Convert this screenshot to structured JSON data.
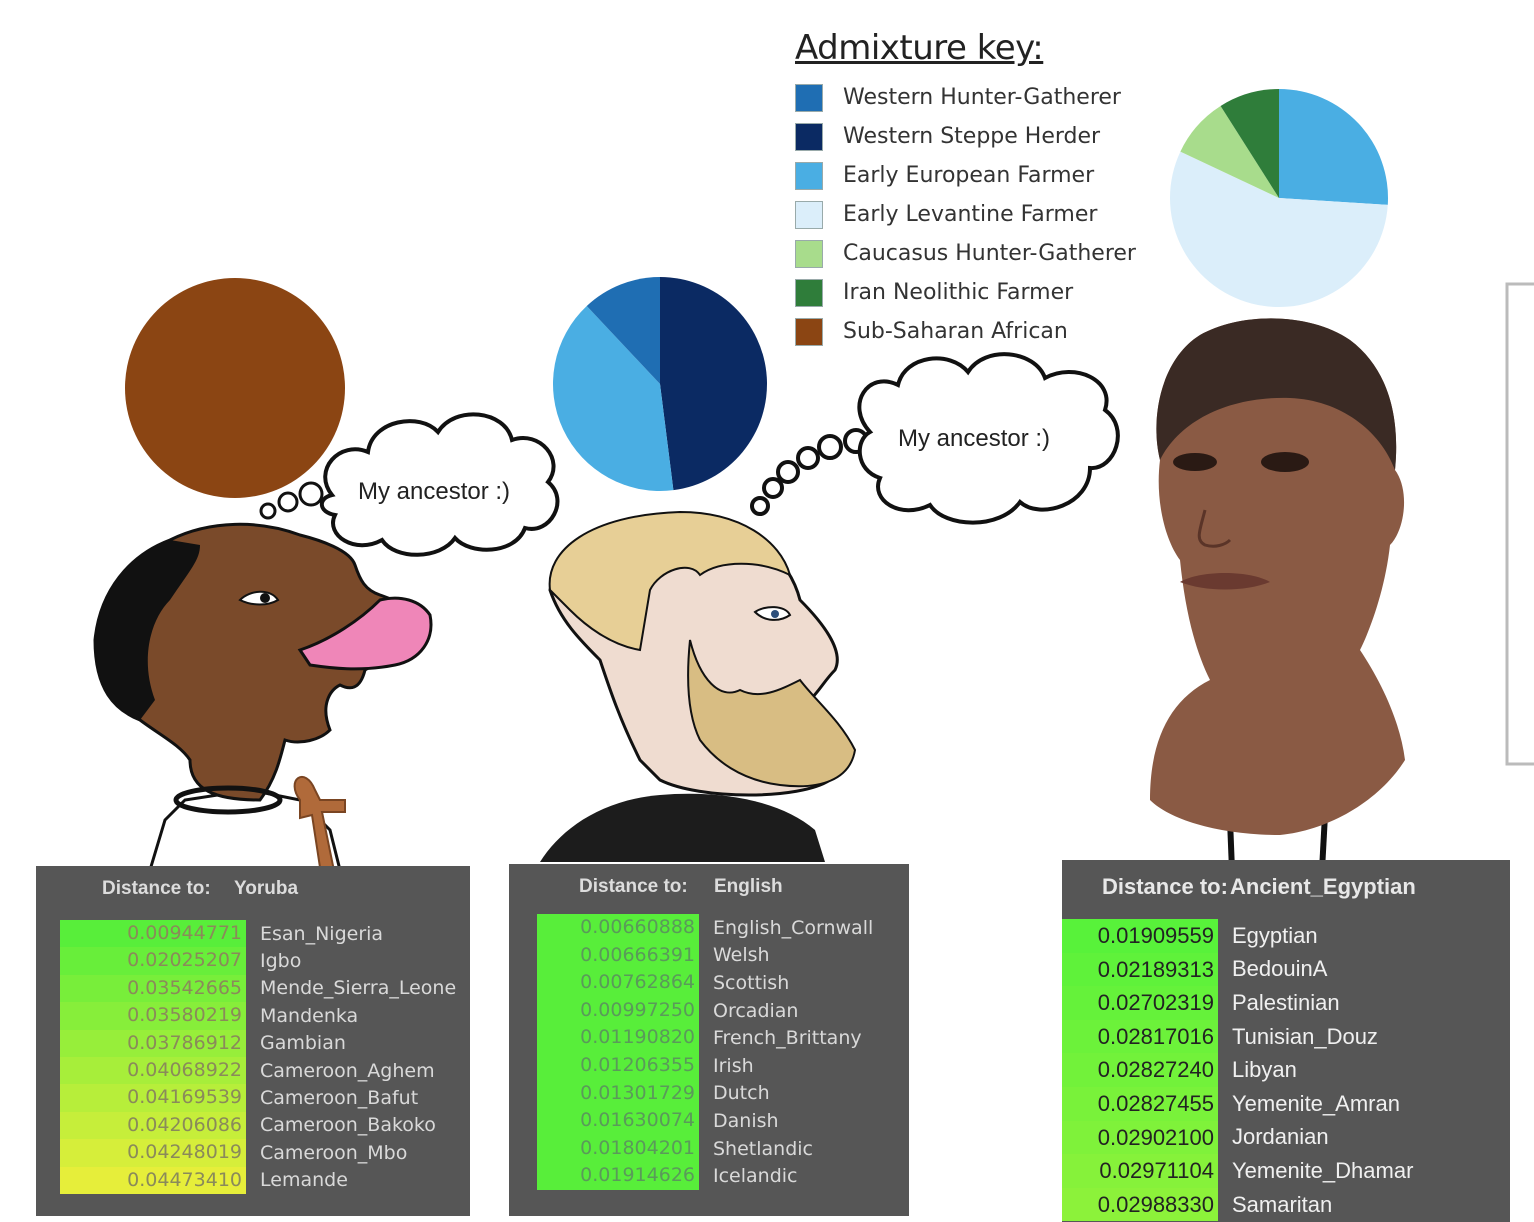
{
  "admixture_key": {
    "title": "Admixture key:",
    "items": [
      {
        "label": "Western Hunter-Gatherer",
        "color": "#1f6eb3"
      },
      {
        "label": "Western Steppe Herder",
        "color": "#0b2a63"
      },
      {
        "label": "Early European Farmer",
        "color": "#4aaee3"
      },
      {
        "label": "Early Levantine Farmer",
        "color": "#dbeefa"
      },
      {
        "label": "Caucasus Hunter-Gatherer",
        "color": "#a8dc8c"
      },
      {
        "label": "Iran Neolithic Farmer",
        "color": "#2f7d3a"
      },
      {
        "label": "Sub-Saharan African",
        "color": "#8b4513"
      }
    ]
  },
  "figures": [
    {
      "thought": "My ancestor :)",
      "pie": [
        {
          "component": "Sub-Saharan African",
          "fraction": 1.0
        }
      ]
    },
    {
      "thought": "My ancestor :)",
      "pie": [
        {
          "component": "Western Steppe Herder",
          "fraction": 0.48
        },
        {
          "component": "Early European Farmer",
          "fraction": 0.4
        },
        {
          "component": "Western Hunter-Gatherer",
          "fraction": 0.12
        }
      ]
    },
    {
      "pie": [
        {
          "component": "Early European Farmer",
          "fraction": 0.26
        },
        {
          "component": "Early Levantine Farmer",
          "fraction": 0.56
        },
        {
          "component": "Caucasus Hunter-Gatherer",
          "fraction": 0.09
        },
        {
          "component": "Iran Neolithic Farmer",
          "fraction": 0.09
        }
      ]
    }
  ],
  "panels": [
    {
      "header_label": "Distance to:",
      "header_target": "Yoruba",
      "rows": [
        {
          "value": "0.00944771",
          "name": "Esan_Nigeria"
        },
        {
          "value": "0.02025207",
          "name": "Igbo"
        },
        {
          "value": "0.03542665",
          "name": "Mende_Sierra_Leone"
        },
        {
          "value": "0.03580219",
          "name": "Mandenka"
        },
        {
          "value": "0.03786912",
          "name": "Gambian"
        },
        {
          "value": "0.04068922",
          "name": "Cameroon_Aghem"
        },
        {
          "value": "0.04169539",
          "name": "Cameroon_Bafut"
        },
        {
          "value": "0.04206086",
          "name": "Cameroon_Bakoko"
        },
        {
          "value": "0.04248019",
          "name": "Cameroon_Mbo"
        },
        {
          "value": "0.04473410",
          "name": "Lemande"
        }
      ]
    },
    {
      "header_label": "Distance to:",
      "header_target": "English",
      "rows": [
        {
          "value": "0.00660888",
          "name": "English_Cornwall"
        },
        {
          "value": "0.00666391",
          "name": "Welsh"
        },
        {
          "value": "0.00762864",
          "name": "Scottish"
        },
        {
          "value": "0.00997250",
          "name": "Orcadian"
        },
        {
          "value": "0.01190820",
          "name": "French_Brittany"
        },
        {
          "value": "0.01206355",
          "name": "Irish"
        },
        {
          "value": "0.01301729",
          "name": "Dutch"
        },
        {
          "value": "0.01630074",
          "name": "Danish"
        },
        {
          "value": "0.01804201",
          "name": "Shetlandic"
        },
        {
          "value": "0.01914626",
          "name": "Icelandic"
        }
      ]
    },
    {
      "header_label": "Distance to:",
      "header_target": "Ancient_Egyptian",
      "rows": [
        {
          "value": "0.01909559",
          "name": "Egyptian"
        },
        {
          "value": "0.02189313",
          "name": "BedouinA"
        },
        {
          "value": "0.02702319",
          "name": "Palestinian"
        },
        {
          "value": "0.02817016",
          "name": "Tunisian_Douz"
        },
        {
          "value": "0.02827240",
          "name": "Libyan"
        },
        {
          "value": "0.02827455",
          "name": "Yemenite_Amran"
        },
        {
          "value": "0.02902100",
          "name": "Jordanian"
        },
        {
          "value": "0.02971104",
          "name": "Yemenite_Dhamar"
        },
        {
          "value": "0.02988330",
          "name": "Samaritan"
        }
      ]
    }
  ]
}
